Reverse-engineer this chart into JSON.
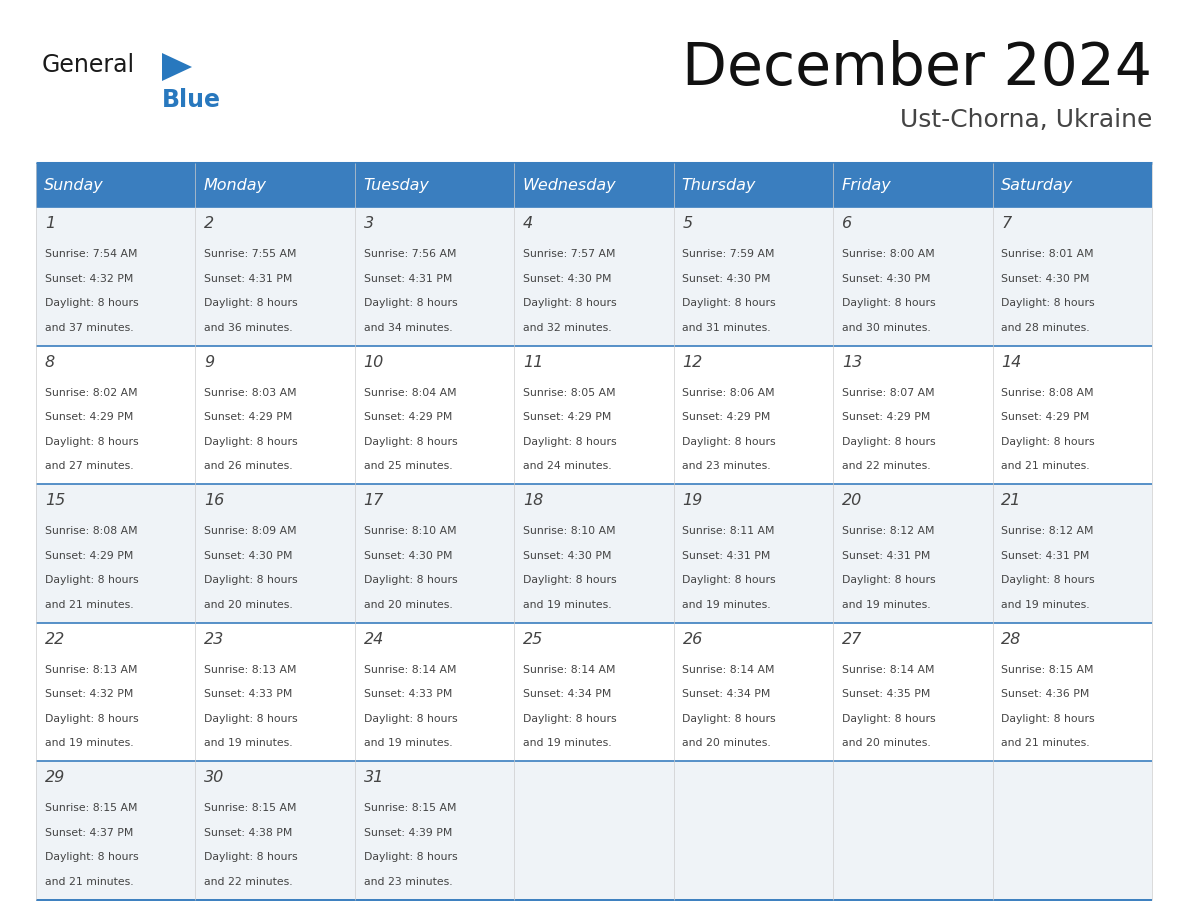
{
  "title": "December 2024",
  "subtitle": "Ust-Chorna, Ukraine",
  "header_color": "#3a7ebf",
  "header_text_color": "#ffffff",
  "border_color": "#3a7ebf",
  "row_sep_color": "#3a7ebf",
  "cell_bg_light": "#eff3f7",
  "cell_bg_white": "#ffffff",
  "text_color": "#444444",
  "day_names": [
    "Sunday",
    "Monday",
    "Tuesday",
    "Wednesday",
    "Thursday",
    "Friday",
    "Saturday"
  ],
  "days": [
    {
      "day": 1,
      "col": 0,
      "row": 0,
      "sunrise": "7:54 AM",
      "sunset": "4:32 PM",
      "dl_hours": "8 hours",
      "dl_min": "37 minutes."
    },
    {
      "day": 2,
      "col": 1,
      "row": 0,
      "sunrise": "7:55 AM",
      "sunset": "4:31 PM",
      "dl_hours": "8 hours",
      "dl_min": "36 minutes."
    },
    {
      "day": 3,
      "col": 2,
      "row": 0,
      "sunrise": "7:56 AM",
      "sunset": "4:31 PM",
      "dl_hours": "8 hours",
      "dl_min": "34 minutes."
    },
    {
      "day": 4,
      "col": 3,
      "row": 0,
      "sunrise": "7:57 AM",
      "sunset": "4:30 PM",
      "dl_hours": "8 hours",
      "dl_min": "32 minutes."
    },
    {
      "day": 5,
      "col": 4,
      "row": 0,
      "sunrise": "7:59 AM",
      "sunset": "4:30 PM",
      "dl_hours": "8 hours",
      "dl_min": "31 minutes."
    },
    {
      "day": 6,
      "col": 5,
      "row": 0,
      "sunrise": "8:00 AM",
      "sunset": "4:30 PM",
      "dl_hours": "8 hours",
      "dl_min": "30 minutes."
    },
    {
      "day": 7,
      "col": 6,
      "row": 0,
      "sunrise": "8:01 AM",
      "sunset": "4:30 PM",
      "dl_hours": "8 hours",
      "dl_min": "28 minutes."
    },
    {
      "day": 8,
      "col": 0,
      "row": 1,
      "sunrise": "8:02 AM",
      "sunset": "4:29 PM",
      "dl_hours": "8 hours",
      "dl_min": "27 minutes."
    },
    {
      "day": 9,
      "col": 1,
      "row": 1,
      "sunrise": "8:03 AM",
      "sunset": "4:29 PM",
      "dl_hours": "8 hours",
      "dl_min": "26 minutes."
    },
    {
      "day": 10,
      "col": 2,
      "row": 1,
      "sunrise": "8:04 AM",
      "sunset": "4:29 PM",
      "dl_hours": "8 hours",
      "dl_min": "25 minutes."
    },
    {
      "day": 11,
      "col": 3,
      "row": 1,
      "sunrise": "8:05 AM",
      "sunset": "4:29 PM",
      "dl_hours": "8 hours",
      "dl_min": "24 minutes."
    },
    {
      "day": 12,
      "col": 4,
      "row": 1,
      "sunrise": "8:06 AM",
      "sunset": "4:29 PM",
      "dl_hours": "8 hours",
      "dl_min": "23 minutes."
    },
    {
      "day": 13,
      "col": 5,
      "row": 1,
      "sunrise": "8:07 AM",
      "sunset": "4:29 PM",
      "dl_hours": "8 hours",
      "dl_min": "22 minutes."
    },
    {
      "day": 14,
      "col": 6,
      "row": 1,
      "sunrise": "8:08 AM",
      "sunset": "4:29 PM",
      "dl_hours": "8 hours",
      "dl_min": "21 minutes."
    },
    {
      "day": 15,
      "col": 0,
      "row": 2,
      "sunrise": "8:08 AM",
      "sunset": "4:29 PM",
      "dl_hours": "8 hours",
      "dl_min": "21 minutes."
    },
    {
      "day": 16,
      "col": 1,
      "row": 2,
      "sunrise": "8:09 AM",
      "sunset": "4:30 PM",
      "dl_hours": "8 hours",
      "dl_min": "20 minutes."
    },
    {
      "day": 17,
      "col": 2,
      "row": 2,
      "sunrise": "8:10 AM",
      "sunset": "4:30 PM",
      "dl_hours": "8 hours",
      "dl_min": "20 minutes."
    },
    {
      "day": 18,
      "col": 3,
      "row": 2,
      "sunrise": "8:10 AM",
      "sunset": "4:30 PM",
      "dl_hours": "8 hours",
      "dl_min": "19 minutes."
    },
    {
      "day": 19,
      "col": 4,
      "row": 2,
      "sunrise": "8:11 AM",
      "sunset": "4:31 PM",
      "dl_hours": "8 hours",
      "dl_min": "19 minutes."
    },
    {
      "day": 20,
      "col": 5,
      "row": 2,
      "sunrise": "8:12 AM",
      "sunset": "4:31 PM",
      "dl_hours": "8 hours",
      "dl_min": "19 minutes."
    },
    {
      "day": 21,
      "col": 6,
      "row": 2,
      "sunrise": "8:12 AM",
      "sunset": "4:31 PM",
      "dl_hours": "8 hours",
      "dl_min": "19 minutes."
    },
    {
      "day": 22,
      "col": 0,
      "row": 3,
      "sunrise": "8:13 AM",
      "sunset": "4:32 PM",
      "dl_hours": "8 hours",
      "dl_min": "19 minutes."
    },
    {
      "day": 23,
      "col": 1,
      "row": 3,
      "sunrise": "8:13 AM",
      "sunset": "4:33 PM",
      "dl_hours": "8 hours",
      "dl_min": "19 minutes."
    },
    {
      "day": 24,
      "col": 2,
      "row": 3,
      "sunrise": "8:14 AM",
      "sunset": "4:33 PM",
      "dl_hours": "8 hours",
      "dl_min": "19 minutes."
    },
    {
      "day": 25,
      "col": 3,
      "row": 3,
      "sunrise": "8:14 AM",
      "sunset": "4:34 PM",
      "dl_hours": "8 hours",
      "dl_min": "19 minutes."
    },
    {
      "day": 26,
      "col": 4,
      "row": 3,
      "sunrise": "8:14 AM",
      "sunset": "4:34 PM",
      "dl_hours": "8 hours",
      "dl_min": "20 minutes."
    },
    {
      "day": 27,
      "col": 5,
      "row": 3,
      "sunrise": "8:14 AM",
      "sunset": "4:35 PM",
      "dl_hours": "8 hours",
      "dl_min": "20 minutes."
    },
    {
      "day": 28,
      "col": 6,
      "row": 3,
      "sunrise": "8:15 AM",
      "sunset": "4:36 PM",
      "dl_hours": "8 hours",
      "dl_min": "21 minutes."
    },
    {
      "day": 29,
      "col": 0,
      "row": 4,
      "sunrise": "8:15 AM",
      "sunset": "4:37 PM",
      "dl_hours": "8 hours",
      "dl_min": "21 minutes."
    },
    {
      "day": 30,
      "col": 1,
      "row": 4,
      "sunrise": "8:15 AM",
      "sunset": "4:38 PM",
      "dl_hours": "8 hours",
      "dl_min": "22 minutes."
    },
    {
      "day": 31,
      "col": 2,
      "row": 4,
      "sunrise": "8:15 AM",
      "sunset": "4:39 PM",
      "dl_hours": "8 hours",
      "dl_min": "23 minutes."
    }
  ],
  "num_rows": 5,
  "logo_general_color": "#1a1a1a",
  "logo_blue_color": "#2878be"
}
